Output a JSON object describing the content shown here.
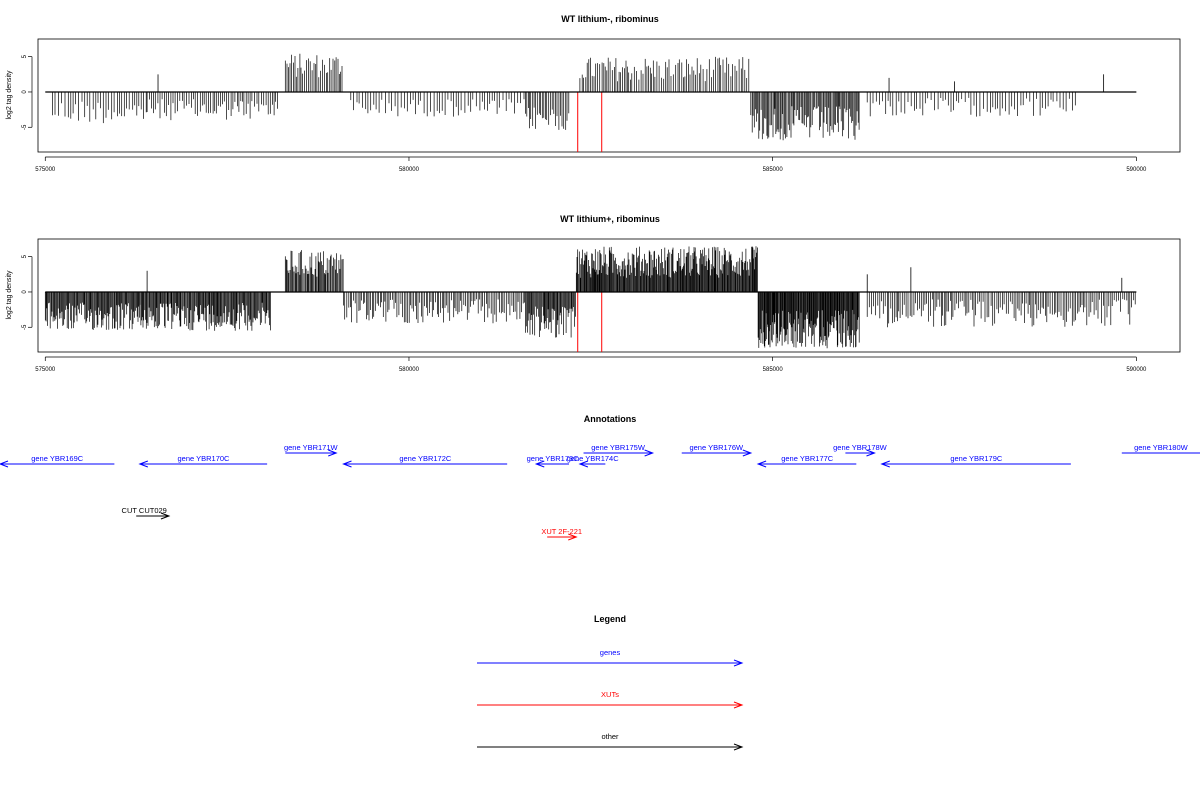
{
  "colors": {
    "genes": "#0000ff",
    "xuts": "#ff0000",
    "other": "#000000",
    "axis": "#000000"
  },
  "chart_data": [
    {
      "type": "bar",
      "title": "WT lithium-, ribominus",
      "ylabel": "log2 tag density",
      "xlim": [
        574900,
        590600
      ],
      "ylim": [
        -8.5,
        7.5
      ],
      "xticks": [
        575000,
        580000,
        585000,
        590000
      ],
      "xtick_labels": [
        "575000",
        "580000",
        "585000",
        "590000"
      ],
      "yticks": [
        -5,
        0,
        5
      ],
      "ytick_labels": [
        "-5",
        "0",
        "5"
      ],
      "segments": [
        {
          "from": 575100,
          "to": 576400,
          "sign": -1,
          "low": 1,
          "high": 4.5,
          "step": 38
        },
        {
          "from": 576400,
          "to": 578200,
          "sign": -1,
          "low": 1,
          "high": 4,
          "step": 28
        },
        {
          "from": 578300,
          "to": 579100,
          "sign": 1,
          "low": 2,
          "high": 5.5,
          "step": 22
        },
        {
          "from": 579200,
          "to": 581600,
          "sign": -1,
          "low": 1,
          "high": 3.5,
          "step": 40
        },
        {
          "from": 581600,
          "to": 582200,
          "sign": -1,
          "low": 2,
          "high": 5.5,
          "step": 22
        },
        {
          "from": 582350,
          "to": 584700,
          "sign": 1,
          "low": 1.5,
          "high": 5,
          "step": 26
        },
        {
          "from": 584700,
          "to": 586200,
          "sign": -1,
          "low": 2,
          "high": 7,
          "step": 16
        },
        {
          "from": 586300,
          "to": 589200,
          "sign": -1,
          "low": 0.8,
          "high": 3.5,
          "step": 40
        }
      ],
      "spikes": [
        {
          "x": 576550,
          "y": 2.5
        },
        {
          "x": 586600,
          "y": 2
        },
        {
          "x": 587500,
          "y": 1.5
        },
        {
          "x": 589550,
          "y": 2.5
        }
      ],
      "red_marks": [
        {
          "x": 582320,
          "y": -8.5
        },
        {
          "x": 582650,
          "y": -8.5
        }
      ]
    },
    {
      "type": "bar",
      "title": "WT lithium+, ribominus",
      "ylabel": "log2 tag density",
      "xlim": [
        574900,
        590600
      ],
      "ylim": [
        -8.5,
        7.5
      ],
      "xticks": [
        575000,
        580000,
        585000,
        590000
      ],
      "xtick_labels": [
        "575000",
        "580000",
        "585000",
        "590000"
      ],
      "yticks": [
        -5,
        0,
        5
      ],
      "ytick_labels": [
        "-5",
        "0",
        "5"
      ],
      "segments": [
        {
          "from": 575000,
          "to": 576300,
          "sign": -1,
          "low": 1.5,
          "high": 5.5,
          "step": 12
        },
        {
          "from": 576300,
          "to": 578100,
          "sign": -1,
          "low": 1.5,
          "high": 5.5,
          "step": 12
        },
        {
          "from": 578300,
          "to": 579100,
          "sign": 1,
          "low": 2,
          "high": 6,
          "step": 14
        },
        {
          "from": 579100,
          "to": 581600,
          "sign": -1,
          "low": 1,
          "high": 4.5,
          "step": 22
        },
        {
          "from": 581600,
          "to": 582300,
          "sign": -1,
          "low": 2,
          "high": 6.5,
          "step": 12
        },
        {
          "from": 582300,
          "to": 584800,
          "sign": 1,
          "low": 2,
          "high": 6.5,
          "step": 10
        },
        {
          "from": 584800,
          "to": 586200,
          "sign": -1,
          "low": 2.5,
          "high": 8,
          "step": 9
        },
        {
          "from": 586300,
          "to": 590000,
          "sign": -1,
          "low": 1,
          "high": 5,
          "step": 24
        }
      ],
      "spikes": [
        {
          "x": 576400,
          "y": 3
        },
        {
          "x": 586300,
          "y": 2.5
        },
        {
          "x": 586900,
          "y": 3.5
        },
        {
          "x": 589800,
          "y": 2
        }
      ],
      "red_marks": [
        {
          "x": 582320,
          "y": -8.5
        },
        {
          "x": 582650,
          "y": -8.5
        }
      ]
    }
  ],
  "annotations": {
    "title": "Annotations",
    "xlim": [
      574900,
      590600
    ],
    "features": [
      {
        "label": "gene YBR169C",
        "type": "genes",
        "start": 574300,
        "end": 575950,
        "strand": "-",
        "row": 1
      },
      {
        "label": "gene YBR170C",
        "type": "genes",
        "start": 576300,
        "end": 578050,
        "strand": "-",
        "row": 1
      },
      {
        "label": "gene YBR171W",
        "type": "genes",
        "start": 578300,
        "end": 579000,
        "strand": "+",
        "row": 0
      },
      {
        "label": "gene YBR172C",
        "type": "genes",
        "start": 579100,
        "end": 581350,
        "strand": "-",
        "row": 1
      },
      {
        "label": "gene YBR173C",
        "type": "genes",
        "start": 581750,
        "end": 582200,
        "strand": "-",
        "row": 1
      },
      {
        "label": "gene YBR174C",
        "type": "genes",
        "start": 582350,
        "end": 582700,
        "strand": "-",
        "row": 1
      },
      {
        "label": "gene YBR175W",
        "type": "genes",
        "start": 582400,
        "end": 583350,
        "strand": "+",
        "row": 0
      },
      {
        "label": "gene YBR176W",
        "type": "genes",
        "start": 583750,
        "end": 584700,
        "strand": "+",
        "row": 0
      },
      {
        "label": "gene YBR177C",
        "type": "genes",
        "start": 584800,
        "end": 586150,
        "strand": "-",
        "row": 1
      },
      {
        "label": "gene YBR178W",
        "type": "genes",
        "start": 586000,
        "end": 586400,
        "strand": "+",
        "row": 0
      },
      {
        "label": "gene YBR179C",
        "type": "genes",
        "start": 586500,
        "end": 589100,
        "strand": "-",
        "row": 1
      },
      {
        "label": "gene YBR180W",
        "type": "genes",
        "start": 589800,
        "end": 591500,
        "strand": "+",
        "row": 0
      },
      {
        "label": "CUT CUT029",
        "type": "other",
        "start": 576250,
        "end": 576700,
        "strand": "+",
        "row": 2
      },
      {
        "label": "XUT 2F-221",
        "type": "xuts",
        "start": 581900,
        "end": 582300,
        "strand": "+",
        "row": 3
      }
    ]
  },
  "legend": {
    "title": "Legend",
    "items": [
      {
        "label": "genes",
        "type": "genes"
      },
      {
        "label": "XUTs",
        "type": "xuts"
      },
      {
        "label": "other",
        "type": "other"
      }
    ]
  }
}
